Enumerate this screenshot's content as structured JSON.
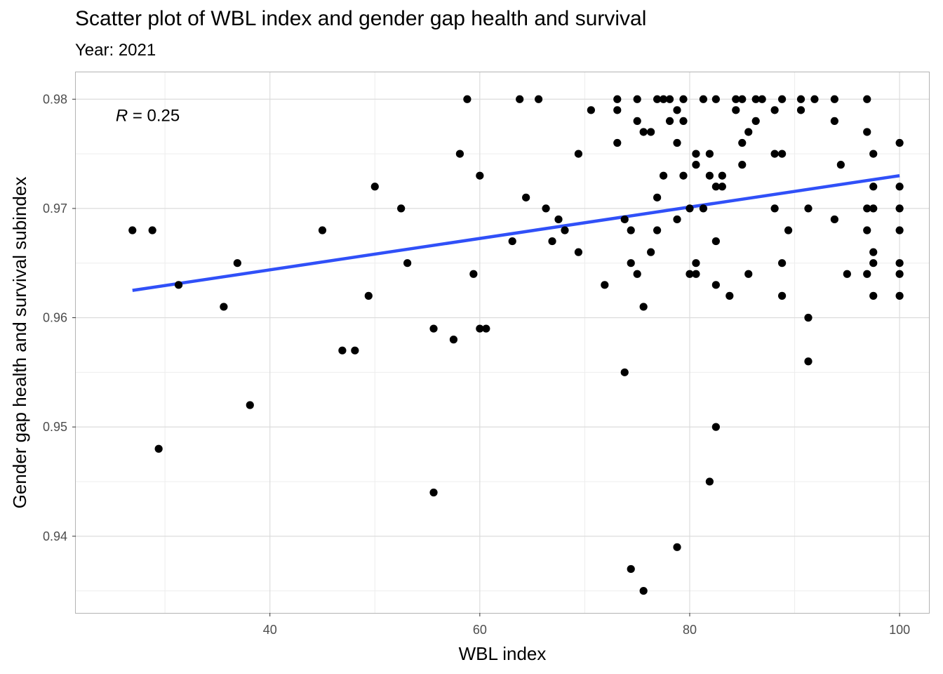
{
  "chart_data": {
    "type": "scatter",
    "title": "Scatter plot of WBL index and gender gap health and survival",
    "subtitle": "Year: 2021",
    "xlabel": "WBL index",
    "ylabel": "Gender gap health and survival subindex",
    "xlim": [
      21.5,
      102.8
    ],
    "ylim": [
      0.93298,
      0.98246
    ],
    "x_ticks": [
      40,
      60,
      80,
      100
    ],
    "y_ticks": [
      0.94,
      0.95,
      0.96,
      0.97,
      0.98
    ],
    "grid": true,
    "annotation": {
      "italic": "R",
      "text": " = 0.25"
    },
    "annotation_pos": {
      "x": 25.3,
      "y": 0.9785
    },
    "trend_line": {
      "color": "#3050f8",
      "x": [
        26.9,
        100
      ],
      "y": [
        0.9625,
        0.973
      ]
    },
    "point_color": "#000000",
    "points": [
      [
        26.9,
        0.968
      ],
      [
        28.8,
        0.968
      ],
      [
        29.4,
        0.948
      ],
      [
        31.3,
        0.963
      ],
      [
        35.6,
        0.961
      ],
      [
        36.9,
        0.965
      ],
      [
        38.1,
        0.952
      ],
      [
        45.0,
        0.968
      ],
      [
        46.9,
        0.957
      ],
      [
        48.1,
        0.957
      ],
      [
        49.4,
        0.962
      ],
      [
        50.0,
        0.972
      ],
      [
        52.5,
        0.97
      ],
      [
        53.1,
        0.965
      ],
      [
        55.6,
        0.959
      ],
      [
        55.6,
        0.944
      ],
      [
        57.5,
        0.958
      ],
      [
        58.1,
        0.975
      ],
      [
        58.8,
        0.98
      ],
      [
        59.4,
        0.964
      ],
      [
        60.0,
        0.973
      ],
      [
        60.0,
        0.959
      ],
      [
        60.6,
        0.959
      ],
      [
        63.1,
        0.967
      ],
      [
        63.8,
        0.98
      ],
      [
        64.4,
        0.971
      ],
      [
        65.6,
        0.98
      ],
      [
        66.3,
        0.97
      ],
      [
        66.9,
        0.967
      ],
      [
        67.5,
        0.969
      ],
      [
        68.1,
        0.968
      ],
      [
        69.4,
        0.975
      ],
      [
        69.4,
        0.966
      ],
      [
        70.6,
        0.979
      ],
      [
        71.9,
        0.963
      ],
      [
        73.1,
        0.98
      ],
      [
        73.1,
        0.979
      ],
      [
        73.1,
        0.976
      ],
      [
        73.8,
        0.969
      ],
      [
        73.8,
        0.955
      ],
      [
        74.4,
        0.968
      ],
      [
        74.4,
        0.965
      ],
      [
        74.4,
        0.937
      ],
      [
        75.0,
        0.98
      ],
      [
        75.0,
        0.978
      ],
      [
        75.0,
        0.964
      ],
      [
        75.6,
        0.977
      ],
      [
        75.6,
        0.961
      ],
      [
        75.6,
        0.935
      ],
      [
        76.3,
        0.977
      ],
      [
        76.3,
        0.966
      ],
      [
        76.9,
        0.98
      ],
      [
        76.9,
        0.971
      ],
      [
        76.9,
        0.968
      ],
      [
        77.5,
        0.98
      ],
      [
        77.5,
        0.973
      ],
      [
        78.1,
        0.98
      ],
      [
        78.1,
        0.978
      ],
      [
        78.8,
        0.979
      ],
      [
        78.8,
        0.976
      ],
      [
        78.8,
        0.969
      ],
      [
        78.8,
        0.939
      ],
      [
        79.4,
        0.98
      ],
      [
        79.4,
        0.978
      ],
      [
        79.4,
        0.973
      ],
      [
        80.0,
        0.97
      ],
      [
        80.0,
        0.964
      ],
      [
        80.6,
        0.975
      ],
      [
        80.6,
        0.974
      ],
      [
        80.6,
        0.965
      ],
      [
        80.6,
        0.964
      ],
      [
        81.3,
        0.98
      ],
      [
        81.3,
        0.97
      ],
      [
        81.9,
        0.975
      ],
      [
        81.9,
        0.973
      ],
      [
        81.9,
        0.945
      ],
      [
        82.5,
        0.98
      ],
      [
        82.5,
        0.972
      ],
      [
        82.5,
        0.967
      ],
      [
        82.5,
        0.963
      ],
      [
        82.5,
        0.95
      ],
      [
        83.1,
        0.973
      ],
      [
        83.1,
        0.972
      ],
      [
        83.8,
        0.962
      ],
      [
        84.4,
        0.98
      ],
      [
        84.4,
        0.979
      ],
      [
        85.0,
        0.98
      ],
      [
        85.0,
        0.976
      ],
      [
        85.0,
        0.974
      ],
      [
        85.6,
        0.977
      ],
      [
        85.6,
        0.964
      ],
      [
        86.3,
        0.98
      ],
      [
        86.3,
        0.978
      ],
      [
        86.9,
        0.98
      ],
      [
        88.1,
        0.979
      ],
      [
        88.1,
        0.975
      ],
      [
        88.1,
        0.97
      ],
      [
        88.8,
        0.98
      ],
      [
        88.8,
        0.975
      ],
      [
        88.8,
        0.965
      ],
      [
        88.8,
        0.962
      ],
      [
        89.4,
        0.968
      ],
      [
        90.6,
        0.98
      ],
      [
        90.6,
        0.979
      ],
      [
        91.3,
        0.97
      ],
      [
        91.3,
        0.96
      ],
      [
        91.3,
        0.956
      ],
      [
        91.9,
        0.98
      ],
      [
        93.8,
        0.98
      ],
      [
        93.8,
        0.978
      ],
      [
        93.8,
        0.969
      ],
      [
        94.4,
        0.974
      ],
      [
        95.0,
        0.964
      ],
      [
        96.9,
        0.98
      ],
      [
        96.9,
        0.977
      ],
      [
        96.9,
        0.97
      ],
      [
        96.9,
        0.968
      ],
      [
        96.9,
        0.964
      ],
      [
        97.5,
        0.975
      ],
      [
        97.5,
        0.972
      ],
      [
        97.5,
        0.97
      ],
      [
        97.5,
        0.966
      ],
      [
        97.5,
        0.965
      ],
      [
        97.5,
        0.962
      ],
      [
        100,
        0.976
      ],
      [
        100,
        0.972
      ],
      [
        100,
        0.97
      ],
      [
        100,
        0.968
      ],
      [
        100,
        0.965
      ],
      [
        100,
        0.964
      ],
      [
        100,
        0.962
      ]
    ]
  }
}
